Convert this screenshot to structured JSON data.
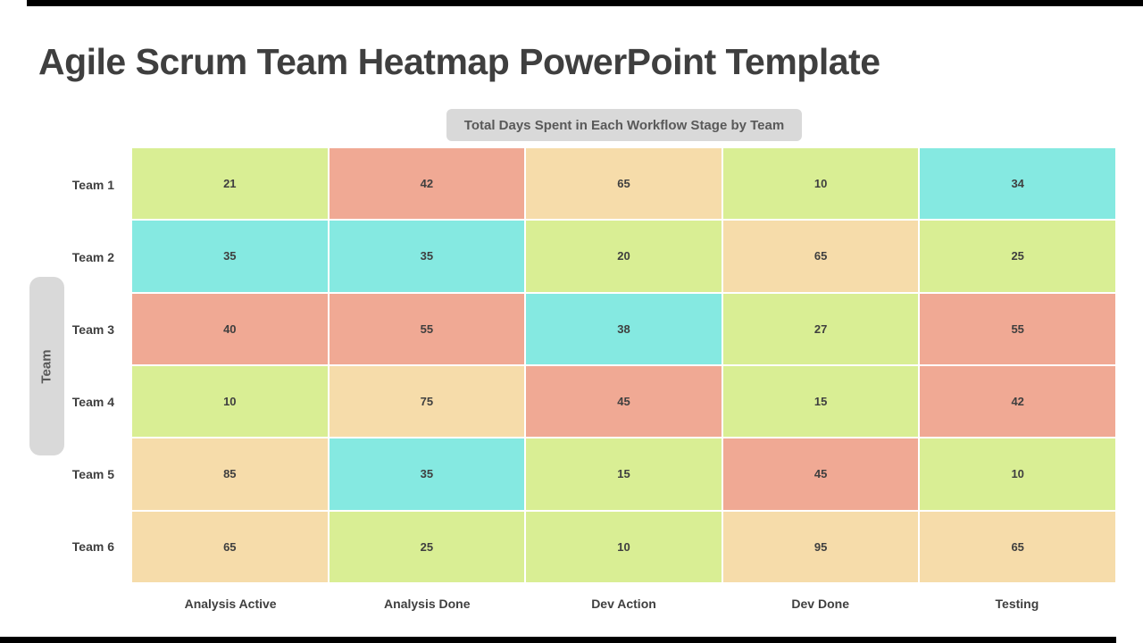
{
  "page": {
    "title": "Agile Scrum Team Heatmap PowerPoint Template",
    "subtitle_badge": "Total Days Spent in Each Workflow Stage by Team",
    "y_axis_label": "Team"
  },
  "colors": {
    "title_text": "#3f3f3f",
    "badge_background": "#d9d9d9",
    "badge_text": "#595959",
    "accent_bar": "#000000",
    "cell_text": "#3f3f3f"
  },
  "chart_data": {
    "type": "heatmap",
    "title": "Total Days Spent in Each Workflow Stage by Team",
    "xlabel": "",
    "ylabel": "Team",
    "legend": "none",
    "grid": "white 2px gaps between cells",
    "columns": [
      "Analysis Active",
      "Analysis Done",
      "Dev Action",
      "Dev Done",
      "Testing"
    ],
    "rows": [
      "Team 1",
      "Team 2",
      "Team 3",
      "Team 4",
      "Team 5",
      "Team 6"
    ],
    "values": [
      [
        21,
        42,
        65,
        10,
        34
      ],
      [
        35,
        35,
        20,
        65,
        25
      ],
      [
        40,
        55,
        38,
        27,
        55
      ],
      [
        10,
        75,
        45,
        15,
        42
      ],
      [
        85,
        35,
        15,
        45,
        10
      ],
      [
        65,
        25,
        10,
        95,
        65
      ]
    ],
    "cell_colors": [
      [
        "green",
        "salmon",
        "peach",
        "green",
        "cyan"
      ],
      [
        "cyan",
        "cyan",
        "green",
        "peach",
        "green"
      ],
      [
        "salmon",
        "salmon",
        "cyan",
        "green",
        "salmon"
      ],
      [
        "green",
        "peach",
        "salmon",
        "green",
        "salmon"
      ],
      [
        "peach",
        "cyan",
        "green",
        "salmon",
        "green"
      ],
      [
        "peach",
        "green",
        "green",
        "peach",
        "peach"
      ]
    ],
    "palette": {
      "green": "#d9ee94",
      "salmon": "#f0a994",
      "peach": "#f6dcaa",
      "cyan": "#85e9e1"
    },
    "value_color_ranges": [
      {
        "range": "10-27",
        "color_key": "green"
      },
      {
        "range": "34-38",
        "color_key": "cyan"
      },
      {
        "range": "40-55",
        "color_key": "salmon"
      },
      {
        "range": "65-95",
        "color_key": "peach"
      }
    ]
  }
}
